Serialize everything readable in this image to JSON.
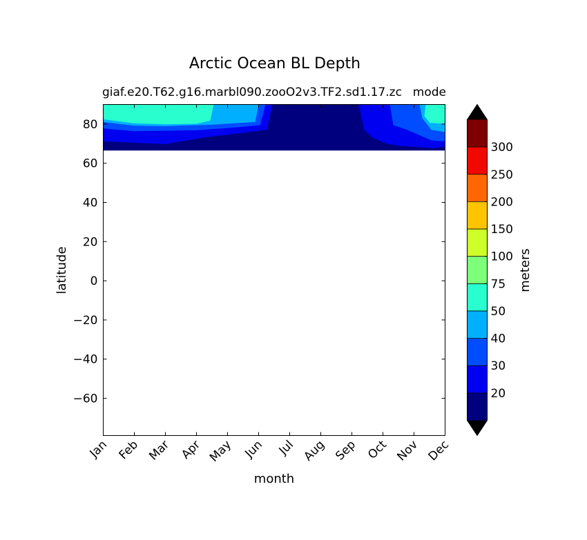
{
  "chart_data": {
    "type": "heatmap",
    "title": "Arctic Ocean BL Depth",
    "subtitle_left": "giaf.e20.T62.g16.marbl090.zooO2v3.TF2.sd1.17.zc",
    "subtitle_right": "mode",
    "xlabel": "month",
    "ylabel": "latitude",
    "x_categories": [
      "Jan",
      "Feb",
      "Mar",
      "Apr",
      "May",
      "Jun",
      "Jul",
      "Aug",
      "Sep",
      "Oct",
      "Nov",
      "Dec"
    ],
    "y_ticks": [
      80,
      60,
      40,
      20,
      0,
      -20,
      -40,
      -60
    ],
    "y_tick_labels": [
      "80",
      "60",
      "40",
      "20",
      "0",
      "−20",
      "−40",
      "−60"
    ],
    "ylim": [
      -79,
      90
    ],
    "data_lat_range": [
      66.5,
      90
    ],
    "colorbar": {
      "label": "meters",
      "levels": [
        "20",
        "30",
        "40",
        "50",
        "75",
        "100",
        "150",
        "200",
        "250",
        "300"
      ],
      "colors": [
        "#00007f",
        "#0000f1",
        "#004dff",
        "#00b0ff",
        "#29ffce",
        "#7dff7a",
        "#ceff29",
        "#ffc400",
        "#ff6800",
        "#f10800",
        "#7f0000"
      ],
      "extend_low_color": "#000000",
      "extend_high_color": "#000000"
    },
    "regions": [
      {
        "level": 0,
        "desc": "lowest band (<20 m), Jun-Sep and southern edge",
        "color": "#00007f"
      },
      {
        "level": 1,
        "desc": "20-30 m",
        "color": "#0000f1"
      },
      {
        "level": 2,
        "desc": "30-40 m",
        "color": "#004dff"
      },
      {
        "level": 3,
        "desc": "40-50 m",
        "color": "#00b0ff"
      },
      {
        "level": 4,
        "desc": "50-75 m, Jan-Apr and Dec near pole",
        "color": "#29ffce"
      }
    ]
  }
}
